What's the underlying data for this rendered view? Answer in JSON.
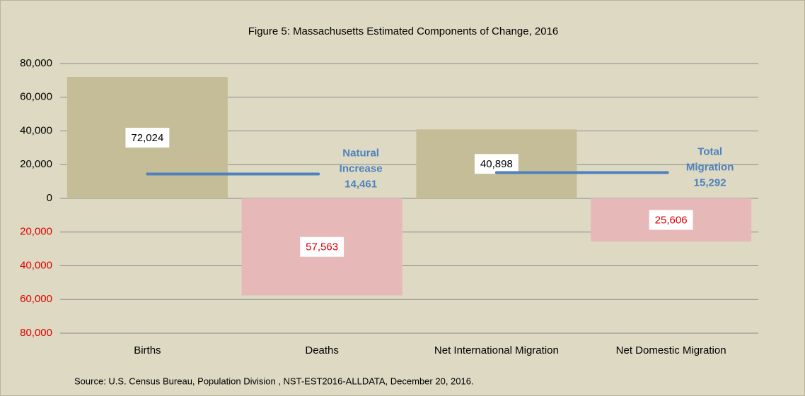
{
  "chart_data": {
    "type": "bar",
    "title": "Figure 5: Massachusetts Estimated Components  of Change, 2016",
    "categories": [
      "Births",
      "Deaths",
      "Net International Migration",
      "Net Domestic Migration"
    ],
    "values": [
      72024,
      -57563,
      40898,
      -25606
    ],
    "value_labels": [
      "72,024",
      "57,563",
      "40,898",
      "25,606"
    ],
    "colors": [
      "#c4bd97",
      "#e6b9b8",
      "#c4bd97",
      "#e6b9b8"
    ],
    "ylim": [
      -80000,
      80000
    ],
    "yticks": [
      {
        "value": -80000,
        "label": "80,000"
      },
      {
        "value": -60000,
        "label": "60,000"
      },
      {
        "value": -40000,
        "label": "40,000"
      },
      {
        "value": -20000,
        "label": "20,000"
      },
      0,
      {
        "value": 20000,
        "label": "20,000"
      },
      {
        "value": 40000,
        "label": "40,000"
      },
      {
        "value": 60000,
        "label": "60,000"
      },
      {
        "value": 80000,
        "label": "80,000"
      }
    ],
    "grid": true,
    "annotations": [
      {
        "text": [
          "Natural",
          "Increase"
        ],
        "value": 14461,
        "value_label": "14,461",
        "color": "#4f81bd"
      },
      {
        "text": [
          "Total",
          "Migration"
        ],
        "value": 15292,
        "value_label": "15,292",
        "color": "#4f81bd"
      }
    ],
    "source": "Source: U.S. Census Bureau, Population Division , NST-EST2016-ALLDATA, December 20, 2016."
  }
}
